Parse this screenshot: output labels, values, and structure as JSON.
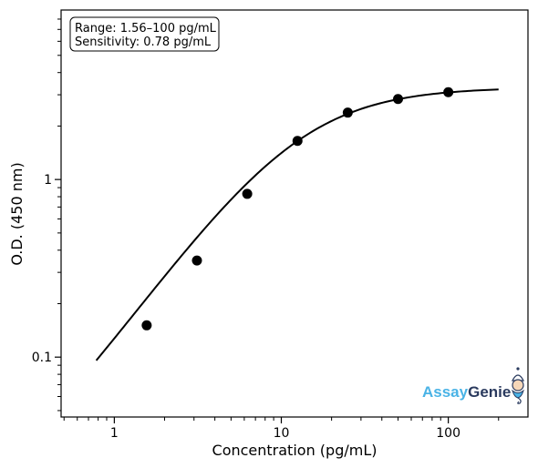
{
  "chart_data": {
    "type": "scatter",
    "title": "",
    "xlabel": "Concentration (pg/mL)",
    "ylabel": "O.D. (450 nm)",
    "x_scale": "log",
    "y_scale": "log",
    "xlim": [
      0.48,
      300
    ],
    "ylim": [
      0.046,
      9.0
    ],
    "x_ticks": [
      {
        "value": 1,
        "label": "1"
      },
      {
        "value": 10,
        "label": "10"
      },
      {
        "value": 100,
        "label": "100"
      }
    ],
    "y_ticks": [
      {
        "value": 0.1,
        "label": "0.1"
      },
      {
        "value": 1,
        "label": "1"
      }
    ],
    "grid": false,
    "series": [
      {
        "kind": "points",
        "color": "#000000",
        "x": [
          1.5625,
          3.125,
          6.25,
          12.5,
          25,
          50,
          100
        ],
        "y": [
          0.151,
          0.35,
          0.83,
          1.65,
          2.38,
          2.84,
          3.1
        ]
      },
      {
        "kind": "fit-curve",
        "color": "#000000",
        "x_range": [
          0.78,
          200
        ],
        "model": "4PL",
        "params": {
          "A": 0.0097,
          "D": 3.3,
          "C": 12.6,
          "B": 1.3
        }
      }
    ],
    "annotations": [
      {
        "text_lines": [
          "Range: 1.56–100 pg/mL",
          "Sensitivity: 0.78 pg/mL"
        ],
        "placement": "top-left"
      }
    ]
  },
  "logo": {
    "part1": "Assay",
    "part2": "Genie",
    "color1": "#4ab3e6",
    "color2": "#2a3a5e"
  }
}
